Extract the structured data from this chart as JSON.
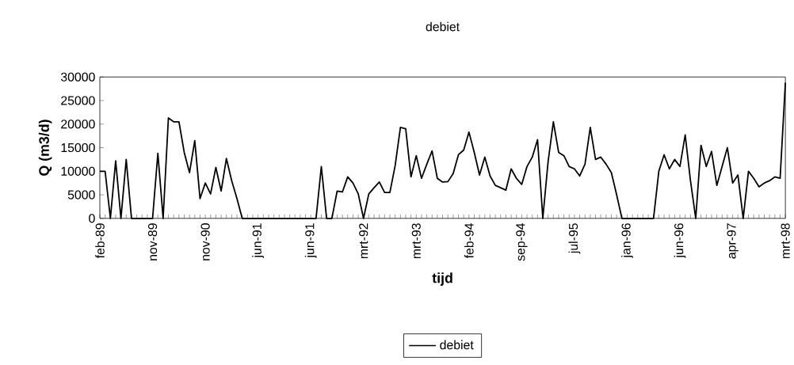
{
  "chart_data": {
    "type": "line",
    "title": "debiet",
    "xlabel": "tijd",
    "ylabel": "Q (m3/d)",
    "categories": [
      "feb-89",
      null,
      null,
      null,
      null,
      null,
      null,
      null,
      null,
      null,
      "nov-89",
      null,
      null,
      null,
      null,
      null,
      null,
      null,
      null,
      null,
      "nov-90",
      null,
      null,
      null,
      null,
      null,
      null,
      null,
      null,
      null,
      "jun-91",
      null,
      null,
      null,
      null,
      null,
      null,
      null,
      null,
      null,
      "jun-91",
      null,
      null,
      null,
      null,
      null,
      null,
      null,
      null,
      null,
      "mrt-92",
      null,
      null,
      null,
      null,
      null,
      null,
      null,
      null,
      null,
      "mrt-93",
      null,
      null,
      null,
      null,
      null,
      null,
      null,
      null,
      null,
      "feb-94",
      null,
      null,
      null,
      null,
      null,
      null,
      null,
      null,
      null,
      "sep-94",
      null,
      null,
      null,
      null,
      null,
      null,
      null,
      null,
      null,
      "jul-95",
      null,
      null,
      null,
      null,
      null,
      null,
      null,
      null,
      null,
      "jan-96",
      null,
      null,
      null,
      null,
      null,
      null,
      null,
      null,
      null,
      "jun-96",
      null,
      null,
      null,
      null,
      null,
      null,
      null,
      null,
      null,
      "apr-97",
      null,
      null,
      null,
      null,
      null,
      null,
      null,
      null,
      null,
      "mrt-98"
    ],
    "series": [
      {
        "name": "debiet",
        "color": "#000000",
        "values": [
          10000,
          10000,
          0,
          12200,
          0,
          12500,
          0,
          0,
          0,
          0,
          0,
          13800,
          0,
          21300,
          20500,
          20500,
          14000,
          9700,
          16500,
          4200,
          7500,
          5200,
          10800,
          5800,
          12700,
          8000,
          4200,
          0,
          0,
          0,
          0,
          0,
          0,
          0,
          0,
          0,
          0,
          0,
          0,
          0,
          0,
          0,
          11000,
          0,
          0,
          5800,
          5600,
          8800,
          7500,
          5200,
          0,
          5200,
          6500,
          7700,
          5500,
          5500,
          11200,
          19300,
          19000,
          8800,
          13300,
          8500,
          11500,
          14300,
          8500,
          7700,
          7800,
          9500,
          13500,
          14500,
          18300,
          14000,
          9200,
          13000,
          9000,
          7000,
          6500,
          6000,
          10500,
          8500,
          7200,
          11000,
          13000,
          16700,
          0,
          12000,
          20500,
          14000,
          13300,
          11000,
          10500,
          9000,
          11500,
          19300,
          12500,
          13000,
          11500,
          9700,
          5000,
          0,
          0,
          0,
          0,
          0,
          0,
          0,
          10000,
          13500,
          10500,
          12500,
          11000,
          17700,
          8000,
          0,
          15500,
          11000,
          14200,
          7000,
          11000,
          15000,
          7500,
          9200,
          0,
          10000,
          8500,
          6700,
          7500,
          8000,
          8800,
          8500,
          28800
        ]
      }
    ],
    "ylim": [
      0,
      30000
    ],
    "yticks": [
      0,
      5000,
      10000,
      15000,
      20000,
      25000,
      30000
    ],
    "legend": "bottom"
  }
}
